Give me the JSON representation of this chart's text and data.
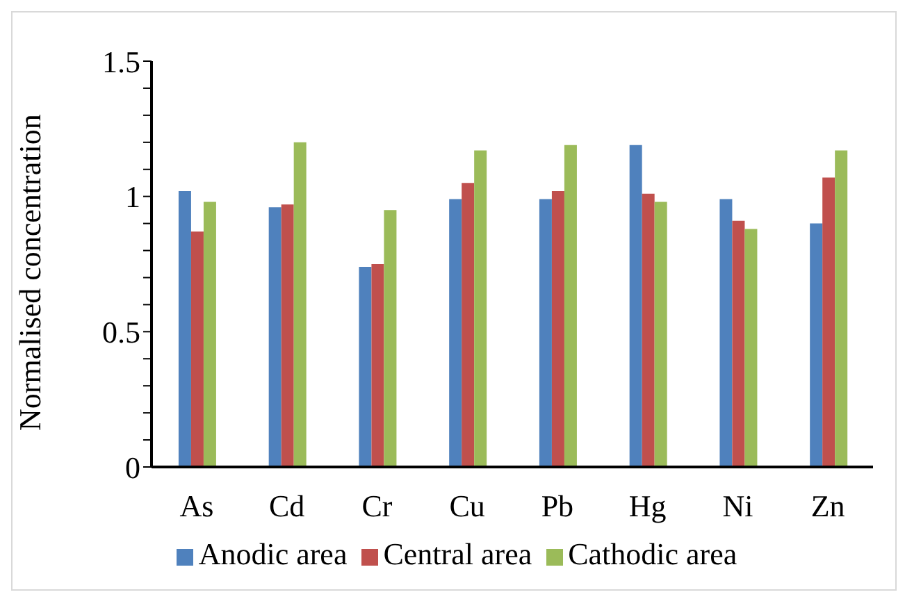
{
  "chart_data": {
    "type": "bar",
    "ylabel": "Normalised concentration",
    "categories": [
      "As",
      "Cd",
      "Cr",
      "Cu",
      "Pb",
      "Hg",
      "Ni",
      "Zn"
    ],
    "series": [
      {
        "name": "Anodic area",
        "color": "#4f81bd",
        "values": [
          1.02,
          0.96,
          0.74,
          0.99,
          0.99,
          1.19,
          0.99,
          0.9
        ]
      },
      {
        "name": "Central area",
        "color": "#c0504d",
        "values": [
          0.87,
          0.97,
          0.75,
          1.05,
          1.02,
          1.01,
          0.91,
          1.07
        ]
      },
      {
        "name": "Cathodic area",
        "color": "#9bbb59",
        "values": [
          0.98,
          1.2,
          0.95,
          1.17,
          1.19,
          0.98,
          0.88,
          1.17
        ]
      }
    ],
    "ylim": [
      0,
      1.5
    ],
    "yticks": [
      0,
      {
        "value": 0.1,
        "label": null
      },
      {
        "value": 0.2,
        "label": null
      },
      {
        "value": 0.3,
        "label": null
      },
      {
        "value": 0.4,
        "label": null
      },
      0.5,
      {
        "value": 0.6,
        "label": null
      },
      {
        "value": 0.7,
        "label": null
      },
      {
        "value": 0.8,
        "label": null
      },
      {
        "value": 0.9,
        "label": null
      },
      1,
      {
        "value": 1.1,
        "label": null
      },
      {
        "value": 1.2,
        "label": null
      },
      {
        "value": 1.3,
        "label": null
      },
      {
        "value": 1.4,
        "label": null
      },
      1.5
    ],
    "grid": false,
    "legend": "bottom"
  }
}
